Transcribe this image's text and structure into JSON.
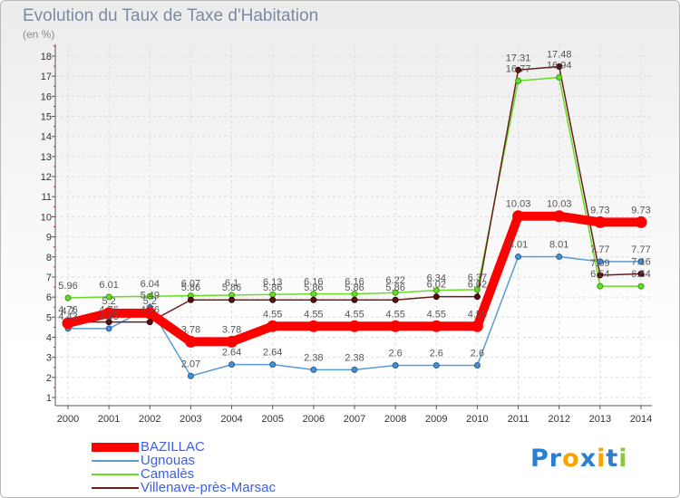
{
  "chart_data": {
    "type": "line",
    "title": "Evolution du Taux de Taxe d'Habitation",
    "subtitle": "(en %)",
    "x": [
      "2000",
      "2001",
      "2002",
      "2003",
      "2004",
      "2005",
      "2006",
      "2007",
      "2008",
      "2009",
      "2010",
      "2011",
      "2012",
      "2013",
      "2014"
    ],
    "ylim": [
      1,
      18
    ],
    "y_ticks": [
      "1",
      "2",
      "3",
      "4",
      "5",
      "6",
      "7",
      "8",
      "9",
      "10",
      "11",
      "12",
      "13",
      "14",
      "15",
      "16",
      "17",
      "18"
    ],
    "grid": true,
    "legend_position": "bottom-left",
    "series": [
      {
        "name": "BAZILLAC",
        "color": "#ff0000",
        "values": [
          4.7,
          5.2,
          5.2,
          3.78,
          3.78,
          4.55,
          4.55,
          4.55,
          4.55,
          4.55,
          4.55,
          10.03,
          10.03,
          9.73,
          9.73
        ],
        "labels": [
          "4.7",
          "5.2",
          "5.2",
          "3.78",
          "3.78",
          "4.55",
          "4.55",
          "4.55",
          "4.55",
          "4.55",
          "4.55",
          "10.03",
          "10.03",
          "9.73",
          "9.73"
        ]
      },
      {
        "name": "Ugnouas",
        "color": "#5a9bd5",
        "values": [
          4.43,
          4.43,
          5.49,
          2.07,
          2.64,
          2.64,
          2.38,
          2.38,
          2.6,
          2.6,
          2.6,
          8.01,
          8.01,
          7.77,
          7.77
        ],
        "labels": [
          "4.43",
          "4.43",
          "5.49",
          "2.07",
          "2.64",
          "2.64",
          "2.38",
          "2.38",
          "2.6",
          "2.6",
          "2.6",
          "8.01",
          "8.01",
          "7.77",
          "7.77"
        ]
      },
      {
        "name": "Camalès",
        "color": "#66dd22",
        "values": [
          5.96,
          6.01,
          6.04,
          6.07,
          6.1,
          6.13,
          6.16,
          6.16,
          6.22,
          6.34,
          6.37,
          16.77,
          16.94,
          6.54,
          6.54
        ],
        "labels": [
          "5.96",
          "6.01",
          "6.04",
          "6.07",
          "6.1",
          "6.13",
          "6.16",
          "6.16",
          "6.22",
          "6.34",
          "6.37",
          "16.77",
          "16.94",
          "6.54",
          "6.54"
        ]
      },
      {
        "name": "Villenave-près-Marsac",
        "color": "#6b1c1c",
        "values": [
          4.76,
          4.76,
          4.76,
          5.86,
          5.86,
          5.86,
          5.86,
          5.86,
          5.86,
          6.02,
          6.02,
          17.31,
          17.48,
          7.09,
          7.16
        ],
        "labels": [
          "4.76",
          "4.76",
          "4.76",
          "5.86",
          "5.86",
          "5.86",
          "5.86",
          "5.86",
          "5.86",
          "6.02",
          "6.02",
          "17.31",
          "17.48",
          "7.09",
          "7.16"
        ]
      }
    ]
  },
  "logo": {
    "letters": [
      "P",
      "r",
      "o",
      "x",
      "i",
      "t",
      "i"
    ],
    "colors": [
      "#2a7fd0",
      "#2a7fd0",
      "#f5a400",
      "#2a7fd0",
      "#f5a400",
      "#2a7fd0",
      "#8cc63f"
    ]
  }
}
